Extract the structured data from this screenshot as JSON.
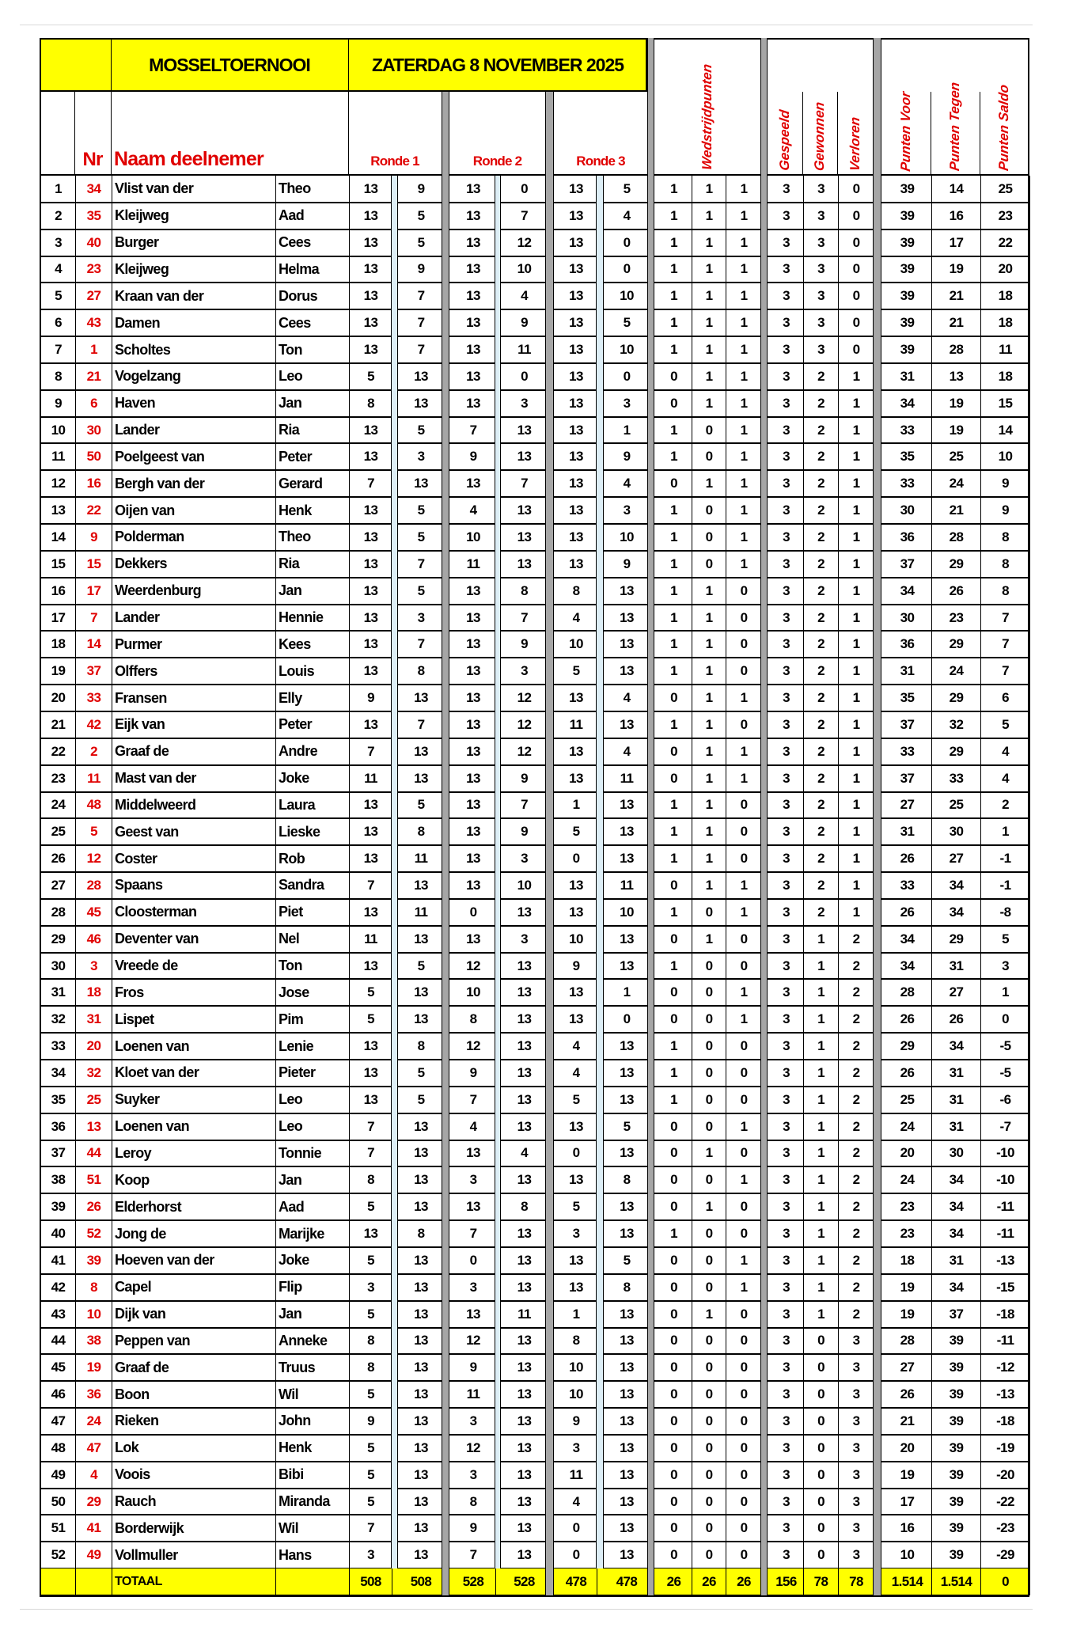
{
  "header": {
    "title": "MOSSELTOERNOOI",
    "date": "ZATERDAG  8 NOVEMBER 2025",
    "nr_label": "Nr",
    "name_label": "Naam deelnemer",
    "rounds": [
      "Ronde 1",
      "Ronde 2",
      "Ronde 3"
    ],
    "wedstrijdpunten": "Wedstrijdpunten",
    "gespeeld": "Gespeeld",
    "gewonnen": "Gewonnen",
    "verloren": "Verloren",
    "punten_voor": "Punten Voor",
    "punten_tegen": "Punten Tegen",
    "punten_saldo": "Punten Saldo"
  },
  "colors": {
    "highlight": "#ffff00",
    "accent_red": "#e00000",
    "separator_gray": "#a6a6a6",
    "score_divider_blue": "#ddeef6"
  },
  "rows": [
    [
      1,
      34,
      "Vlist van der",
      "Theo",
      13,
      9,
      13,
      0,
      13,
      5,
      1,
      1,
      1,
      3,
      3,
      0,
      39,
      14,
      25
    ],
    [
      2,
      35,
      "Kleijweg",
      "Aad",
      13,
      5,
      13,
      7,
      13,
      4,
      1,
      1,
      1,
      3,
      3,
      0,
      39,
      16,
      23
    ],
    [
      3,
      40,
      "Burger",
      "Cees",
      13,
      5,
      13,
      12,
      13,
      0,
      1,
      1,
      1,
      3,
      3,
      0,
      39,
      17,
      22
    ],
    [
      4,
      23,
      "Kleijweg",
      "Helma",
      13,
      9,
      13,
      10,
      13,
      0,
      1,
      1,
      1,
      3,
      3,
      0,
      39,
      19,
      20
    ],
    [
      5,
      27,
      "Kraan van der",
      "Dorus",
      13,
      7,
      13,
      4,
      13,
      10,
      1,
      1,
      1,
      3,
      3,
      0,
      39,
      21,
      18
    ],
    [
      6,
      43,
      "Damen",
      "Cees",
      13,
      7,
      13,
      9,
      13,
      5,
      1,
      1,
      1,
      3,
      3,
      0,
      39,
      21,
      18
    ],
    [
      7,
      1,
      "Scholtes",
      "Ton",
      13,
      7,
      13,
      11,
      13,
      10,
      1,
      1,
      1,
      3,
      3,
      0,
      39,
      28,
      11
    ],
    [
      8,
      21,
      "Vogelzang",
      "Leo",
      5,
      13,
      13,
      0,
      13,
      0,
      0,
      1,
      1,
      3,
      2,
      1,
      31,
      13,
      18
    ],
    [
      9,
      6,
      "Haven",
      "Jan",
      8,
      13,
      13,
      3,
      13,
      3,
      0,
      1,
      1,
      3,
      2,
      1,
      34,
      19,
      15
    ],
    [
      10,
      30,
      "Lander",
      "Ria",
      13,
      5,
      7,
      13,
      13,
      1,
      1,
      0,
      1,
      3,
      2,
      1,
      33,
      19,
      14
    ],
    [
      11,
      50,
      "Poelgeest van",
      "Peter",
      13,
      3,
      9,
      13,
      13,
      9,
      1,
      0,
      1,
      3,
      2,
      1,
      35,
      25,
      10
    ],
    [
      12,
      16,
      "Bergh van der",
      "Gerard",
      7,
      13,
      13,
      7,
      13,
      4,
      0,
      1,
      1,
      3,
      2,
      1,
      33,
      24,
      9
    ],
    [
      13,
      22,
      "Oijen van",
      "Henk",
      13,
      5,
      4,
      13,
      13,
      3,
      1,
      0,
      1,
      3,
      2,
      1,
      30,
      21,
      9
    ],
    [
      14,
      9,
      "Polderman",
      "Theo",
      13,
      5,
      10,
      13,
      13,
      10,
      1,
      0,
      1,
      3,
      2,
      1,
      36,
      28,
      8
    ],
    [
      15,
      15,
      "Dekkers",
      "Ria",
      13,
      7,
      11,
      13,
      13,
      9,
      1,
      0,
      1,
      3,
      2,
      1,
      37,
      29,
      8
    ],
    [
      16,
      17,
      "Weerdenburg",
      "Jan",
      13,
      5,
      13,
      8,
      8,
      13,
      1,
      1,
      0,
      3,
      2,
      1,
      34,
      26,
      8
    ],
    [
      17,
      7,
      "Lander",
      "Hennie",
      13,
      3,
      13,
      7,
      4,
      13,
      1,
      1,
      0,
      3,
      2,
      1,
      30,
      23,
      7
    ],
    [
      18,
      14,
      "Purmer",
      "Kees",
      13,
      7,
      13,
      9,
      10,
      13,
      1,
      1,
      0,
      3,
      2,
      1,
      36,
      29,
      7
    ],
    [
      19,
      37,
      "Olffers",
      "Louis",
      13,
      8,
      13,
      3,
      5,
      13,
      1,
      1,
      0,
      3,
      2,
      1,
      31,
      24,
      7
    ],
    [
      20,
      33,
      "Fransen",
      "Elly",
      9,
      13,
      13,
      12,
      13,
      4,
      0,
      1,
      1,
      3,
      2,
      1,
      35,
      29,
      6
    ],
    [
      21,
      42,
      "Eijk van",
      "Peter",
      13,
      7,
      13,
      12,
      11,
      13,
      1,
      1,
      0,
      3,
      2,
      1,
      37,
      32,
      5
    ],
    [
      22,
      2,
      "Graaf de",
      "Andre",
      7,
      13,
      13,
      12,
      13,
      4,
      0,
      1,
      1,
      3,
      2,
      1,
      33,
      29,
      4
    ],
    [
      23,
      11,
      "Mast van der",
      "Joke",
      11,
      13,
      13,
      9,
      13,
      11,
      0,
      1,
      1,
      3,
      2,
      1,
      37,
      33,
      4
    ],
    [
      24,
      48,
      "Middelweerd",
      "Laura",
      13,
      5,
      13,
      7,
      1,
      13,
      1,
      1,
      0,
      3,
      2,
      1,
      27,
      25,
      2
    ],
    [
      25,
      5,
      "Geest van",
      "Lieske",
      13,
      8,
      13,
      9,
      5,
      13,
      1,
      1,
      0,
      3,
      2,
      1,
      31,
      30,
      1
    ],
    [
      26,
      12,
      "Coster",
      "Rob",
      13,
      11,
      13,
      3,
      0,
      13,
      1,
      1,
      0,
      3,
      2,
      1,
      26,
      27,
      -1
    ],
    [
      27,
      28,
      "Spaans",
      "Sandra",
      7,
      13,
      13,
      10,
      13,
      11,
      0,
      1,
      1,
      3,
      2,
      1,
      33,
      34,
      -1
    ],
    [
      28,
      45,
      "Cloosterman",
      "Piet",
      13,
      11,
      0,
      13,
      13,
      10,
      1,
      0,
      1,
      3,
      2,
      1,
      26,
      34,
      -8
    ],
    [
      29,
      46,
      "Deventer van",
      "Nel",
      11,
      13,
      13,
      3,
      10,
      13,
      0,
      1,
      0,
      3,
      1,
      2,
      34,
      29,
      5
    ],
    [
      30,
      3,
      "Vreede de",
      "Ton",
      13,
      5,
      12,
      13,
      9,
      13,
      1,
      0,
      0,
      3,
      1,
      2,
      34,
      31,
      3
    ],
    [
      31,
      18,
      "Fros",
      "Jose",
      5,
      13,
      10,
      13,
      13,
      1,
      0,
      0,
      1,
      3,
      1,
      2,
      28,
      27,
      1
    ],
    [
      32,
      31,
      "Lispet",
      "Pim",
      5,
      13,
      8,
      13,
      13,
      0,
      0,
      0,
      1,
      3,
      1,
      2,
      26,
      26,
      0
    ],
    [
      33,
      20,
      "Loenen van",
      "Lenie",
      13,
      8,
      12,
      13,
      4,
      13,
      1,
      0,
      0,
      3,
      1,
      2,
      29,
      34,
      -5
    ],
    [
      34,
      32,
      "Kloet van der",
      "Pieter",
      13,
      5,
      9,
      13,
      4,
      13,
      1,
      0,
      0,
      3,
      1,
      2,
      26,
      31,
      -5
    ],
    [
      35,
      25,
      "Suyker",
      "Leo",
      13,
      5,
      7,
      13,
      5,
      13,
      1,
      0,
      0,
      3,
      1,
      2,
      25,
      31,
      -6
    ],
    [
      36,
      13,
      "Loenen van",
      "Leo",
      7,
      13,
      4,
      13,
      13,
      5,
      0,
      0,
      1,
      3,
      1,
      2,
      24,
      31,
      -7
    ],
    [
      37,
      44,
      "Leroy",
      "Tonnie",
      7,
      13,
      13,
      4,
      0,
      13,
      0,
      1,
      0,
      3,
      1,
      2,
      20,
      30,
      -10
    ],
    [
      38,
      51,
      "Koop",
      "Jan",
      8,
      13,
      3,
      13,
      13,
      8,
      0,
      0,
      1,
      3,
      1,
      2,
      24,
      34,
      -10
    ],
    [
      39,
      26,
      "Elderhorst",
      "Aad",
      5,
      13,
      13,
      8,
      5,
      13,
      0,
      1,
      0,
      3,
      1,
      2,
      23,
      34,
      -11
    ],
    [
      40,
      52,
      "Jong de",
      "Marijke",
      13,
      8,
      7,
      13,
      3,
      13,
      1,
      0,
      0,
      3,
      1,
      2,
      23,
      34,
      -11
    ],
    [
      41,
      39,
      "Hoeven van der",
      "Joke",
      5,
      13,
      0,
      13,
      13,
      5,
      0,
      0,
      1,
      3,
      1,
      2,
      18,
      31,
      -13
    ],
    [
      42,
      8,
      "Capel",
      "Flip",
      3,
      13,
      3,
      13,
      13,
      8,
      0,
      0,
      1,
      3,
      1,
      2,
      19,
      34,
      -15
    ],
    [
      43,
      10,
      "Dijk van",
      "Jan",
      5,
      13,
      13,
      11,
      1,
      13,
      0,
      1,
      0,
      3,
      1,
      2,
      19,
      37,
      -18
    ],
    [
      44,
      38,
      "Peppen van",
      "Anneke",
      8,
      13,
      12,
      13,
      8,
      13,
      0,
      0,
      0,
      3,
      0,
      3,
      28,
      39,
      -11
    ],
    [
      45,
      19,
      "Graaf de",
      "Truus",
      8,
      13,
      9,
      13,
      10,
      13,
      0,
      0,
      0,
      3,
      0,
      3,
      27,
      39,
      -12
    ],
    [
      46,
      36,
      "Boon",
      "Wil",
      5,
      13,
      11,
      13,
      10,
      13,
      0,
      0,
      0,
      3,
      0,
      3,
      26,
      39,
      -13
    ],
    [
      47,
      24,
      "Rieken",
      "John",
      9,
      13,
      3,
      13,
      9,
      13,
      0,
      0,
      0,
      3,
      0,
      3,
      21,
      39,
      -18
    ],
    [
      48,
      47,
      "Lok",
      "Henk",
      5,
      13,
      12,
      13,
      3,
      13,
      0,
      0,
      0,
      3,
      0,
      3,
      20,
      39,
      -19
    ],
    [
      49,
      4,
      "Voois",
      "Bibi",
      5,
      13,
      3,
      13,
      11,
      13,
      0,
      0,
      0,
      3,
      0,
      3,
      19,
      39,
      -20
    ],
    [
      50,
      29,
      "Rauch",
      "Miranda",
      5,
      13,
      8,
      13,
      4,
      13,
      0,
      0,
      0,
      3,
      0,
      3,
      17,
      39,
      -22
    ],
    [
      51,
      41,
      "Borderwijk",
      "Wil",
      7,
      13,
      9,
      13,
      0,
      13,
      0,
      0,
      0,
      3,
      0,
      3,
      16,
      39,
      -23
    ],
    [
      52,
      49,
      "Vollmuller",
      "Hans",
      3,
      13,
      7,
      13,
      0,
      13,
      0,
      0,
      0,
      3,
      0,
      3,
      10,
      39,
      -29
    ]
  ],
  "total": [
    "",
    "",
    "TOTAAL",
    "",
    "508",
    "508",
    "528",
    "528",
    "478",
    "478",
    "26",
    "26",
    "26",
    "156",
    "78",
    "78",
    "1.514",
    "1.514",
    "0"
  ]
}
